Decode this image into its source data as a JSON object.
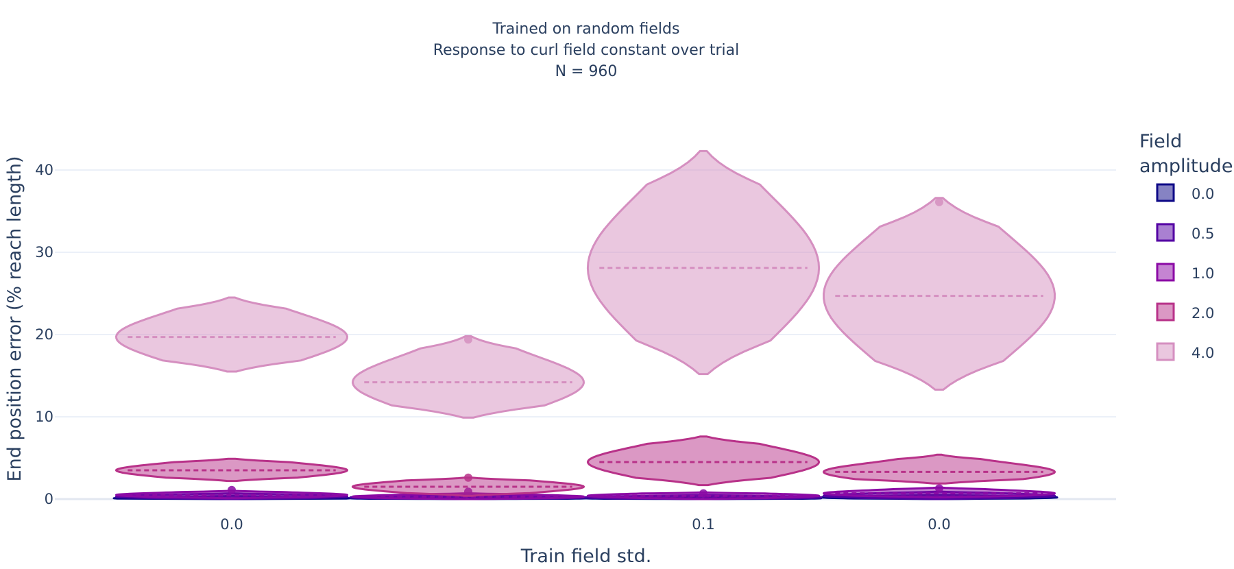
{
  "chart_data": {
    "type": "violin",
    "title": [
      "Trained on random fields",
      "Response to curl field constant over trial",
      "N = 960"
    ],
    "xlabel": "Train field std.",
    "ylabel": "End position error (% reach length)",
    "ylim": [
      -1,
      44
    ],
    "yticks": [
      0,
      10,
      20,
      30,
      40
    ],
    "grid": true,
    "categories": [
      "0.0",
      "",
      "0.1",
      "0.0"
    ],
    "legend": {
      "title": "Field amplitude",
      "position": "right"
    },
    "series": [
      {
        "name": "0.0",
        "color": "#0d0887",
        "groups": [
          {
            "median": 0.1,
            "min": 0.0,
            "max": 0.4,
            "outliers": []
          },
          {
            "median": 0.1,
            "min": 0.0,
            "max": 0.3,
            "outliers": []
          },
          {
            "median": 0.1,
            "min": 0.0,
            "max": 0.3,
            "outliers": []
          },
          {
            "median": 0.2,
            "min": 0.0,
            "max": 0.5,
            "outliers": []
          }
        ]
      },
      {
        "name": "0.5",
        "color": "#5302a3",
        "groups": [
          {
            "median": 0.3,
            "min": 0.0,
            "max": 0.7,
            "outliers": []
          },
          {
            "median": 0.2,
            "min": 0.0,
            "max": 0.5,
            "outliers": []
          },
          {
            "median": 0.2,
            "min": 0.0,
            "max": 0.5,
            "outliers": []
          },
          {
            "median": 0.4,
            "min": 0.0,
            "max": 0.9,
            "outliers": []
          }
        ]
      },
      {
        "name": "1.0",
        "color": "#8b0aa5",
        "groups": [
          {
            "median": 0.5,
            "min": 0.1,
            "max": 1.0,
            "outliers": [
              1.1
            ]
          },
          {
            "median": 0.3,
            "min": 0.0,
            "max": 0.7,
            "outliers": [
              0.9
            ]
          },
          {
            "median": 0.4,
            "min": 0.0,
            "max": 0.8,
            "outliers": [
              0.7
            ]
          },
          {
            "median": 0.7,
            "min": 0.2,
            "max": 1.4,
            "outliers": [
              1.3
            ]
          }
        ]
      },
      {
        "name": "2.0",
        "color": "#b83289",
        "groups": [
          {
            "median": 3.5,
            "min": 2.2,
            "max": 4.9,
            "outliers": []
          },
          {
            "median": 1.5,
            "min": 0.4,
            "max": 2.6,
            "outliers": [
              2.6
            ]
          },
          {
            "median": 4.5,
            "min": 1.7,
            "max": 7.6,
            "outliers": []
          },
          {
            "median": 3.3,
            "min": 1.9,
            "max": 5.4,
            "outliers": []
          }
        ]
      },
      {
        "name": "4.0",
        "color": "#d58fc0",
        "groups": [
          {
            "median": 19.7,
            "min": 15.5,
            "max": 24.5,
            "outliers": []
          },
          {
            "median": 14.2,
            "min": 9.9,
            "max": 19.8,
            "outliers": [
              19.4
            ]
          },
          {
            "median": 28.1,
            "min": 15.2,
            "max": 42.3,
            "outliers": []
          },
          {
            "median": 24.7,
            "min": 13.3,
            "max": 36.6,
            "outliers": [
              36.1
            ]
          }
        ]
      }
    ]
  }
}
